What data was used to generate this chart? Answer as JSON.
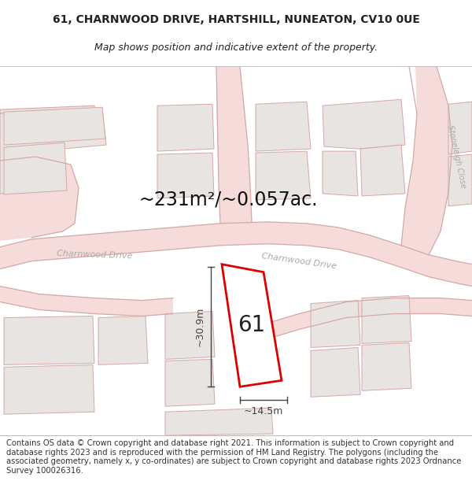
{
  "title_line1": "61, CHARNWOOD DRIVE, HARTSHILL, NUNEATON, CV10 0UE",
  "title_line2": "Map shows position and indicative extent of the property.",
  "area_text": "~231m²/~0.057ac.",
  "number_label": "61",
  "dim_width": "~14.5m",
  "dim_height": "~30.9m",
  "footer_text": "Contains OS data © Crown copyright and database right 2021. This information is subject to Crown copyright and database rights 2023 and is reproduced with the permission of HM Land Registry. The polygons (including the associated geometry, namely x, y co-ordinates) are subject to Crown copyright and database rights 2023 Ordnance Survey 100026316.",
  "bg_color": "#f7f4f2",
  "map_bg": "#f7f4f2",
  "road_color": "#f5dbd9",
  "building_fill": "#e8e4e2",
  "building_ec": "#d4a8a5",
  "highlight_color": "#dd0000",
  "highlight_fill": "#ffffff",
  "road_ec": "#d4a8a5",
  "dim_color": "#444444",
  "label_color": "#aaaaaa",
  "text_color": "#222222",
  "title_fontsize": 10,
  "subtitle_fontsize": 9,
  "area_fontsize": 17,
  "number_fontsize": 20,
  "dim_fontsize": 9,
  "footer_fontsize": 7.2,
  "stoneleigh_label": "Stoneleigh Close",
  "charnwood_label1": "Charnwood Drive",
  "charnwood_label2": "Charnwood Drive"
}
